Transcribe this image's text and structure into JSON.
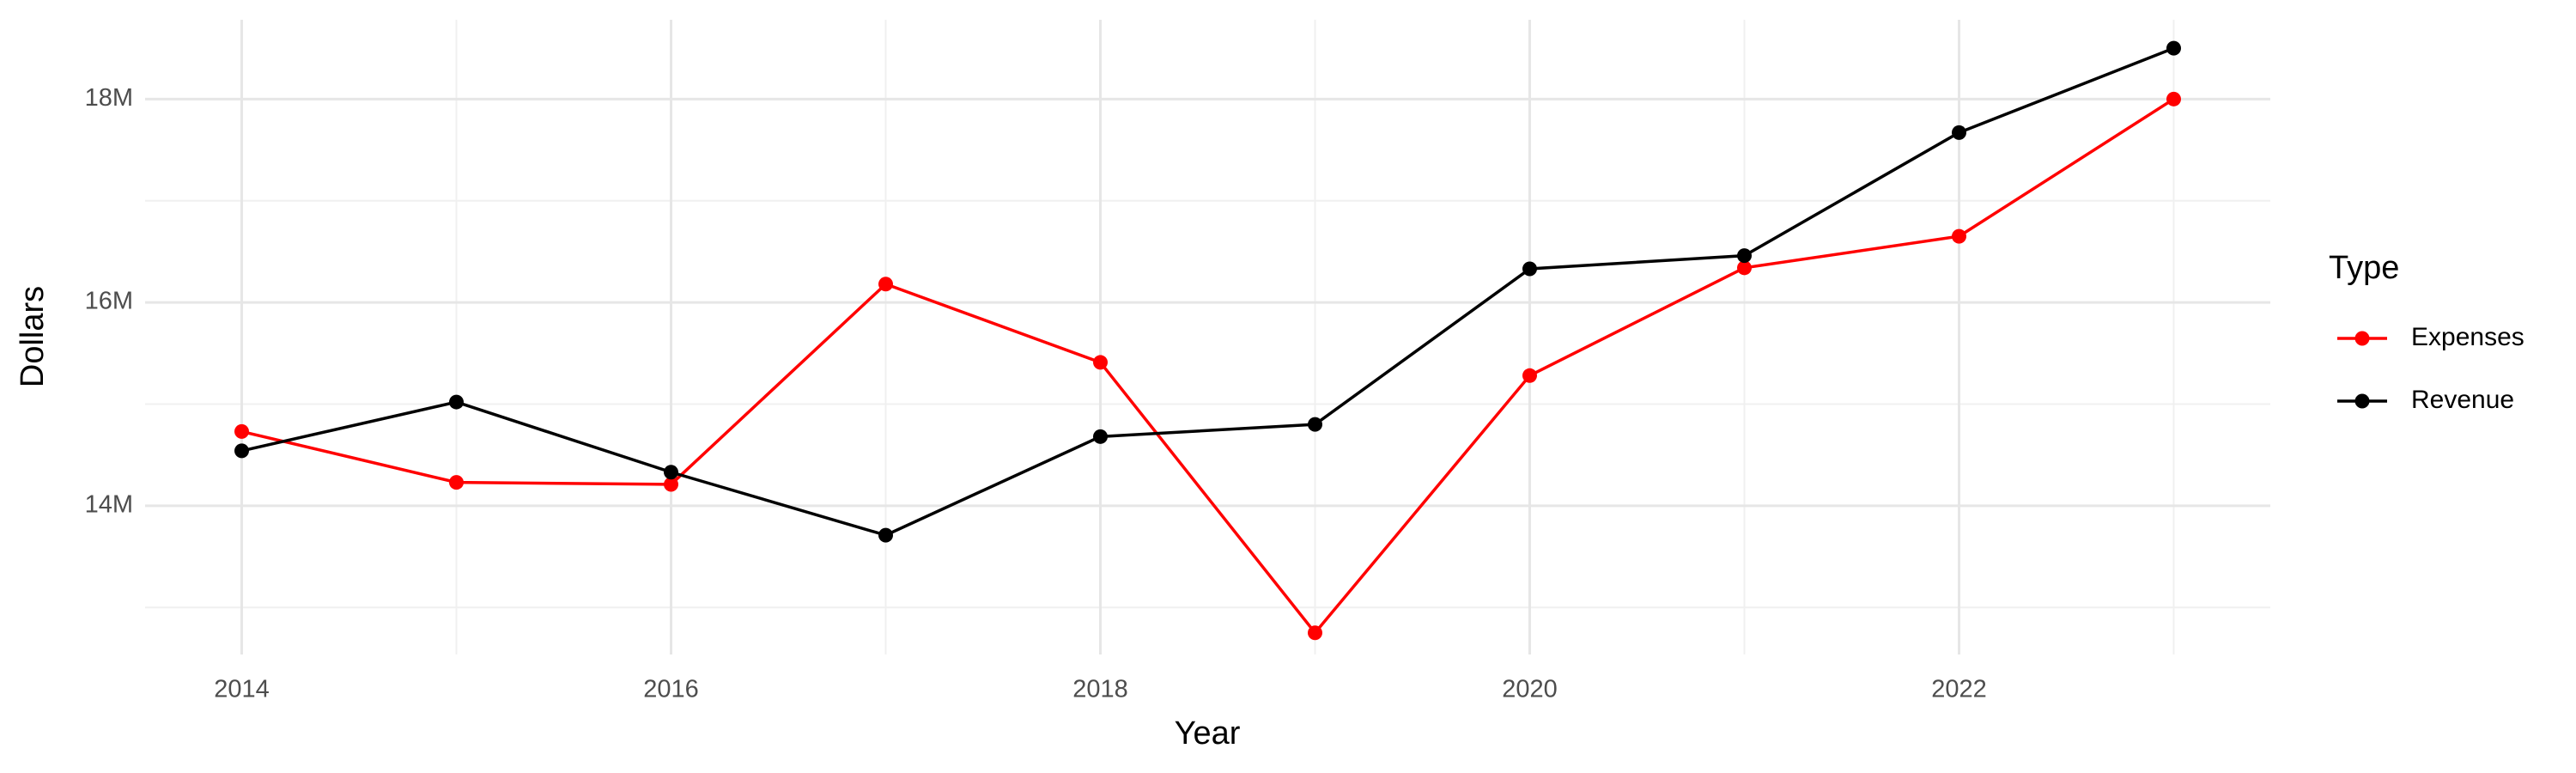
{
  "chart_data": {
    "type": "line",
    "x_label": "Year",
    "y_label": "Dollars",
    "x": [
      2014,
      2015,
      2016,
      2017,
      2018,
      2019,
      2020,
      2021,
      2022,
      2023
    ],
    "series": [
      {
        "name": "Expenses",
        "color": "#ff0000",
        "values": [
          14730000,
          14230000,
          14210000,
          16180000,
          15410000,
          12750000,
          15280000,
          16340000,
          16650000,
          18000000
        ]
      },
      {
        "name": "Revenue",
        "color": "#000000",
        "values": [
          14540000,
          15020000,
          14330000,
          13710000,
          14680000,
          14800000,
          16330000,
          16460000,
          17670000,
          18500000
        ]
      }
    ],
    "xlim": [
      2013.55,
      2023.45
    ],
    "ylim": [
      12537000,
      18780000
    ],
    "xticks": [
      2014,
      2016,
      2018,
      2020,
      2022
    ],
    "yticks": [
      {
        "value": 14000000,
        "label": "14M"
      },
      {
        "value": 16000000,
        "label": "16M"
      },
      {
        "value": 18000000,
        "label": "18M"
      }
    ],
    "x_minor_grid": [
      2015,
      2017,
      2019,
      2021,
      2023
    ],
    "y_minor_grid": [
      13000000,
      15000000,
      17000000
    ],
    "grid": true,
    "legend_title": "Type",
    "legend_position": "right"
  }
}
